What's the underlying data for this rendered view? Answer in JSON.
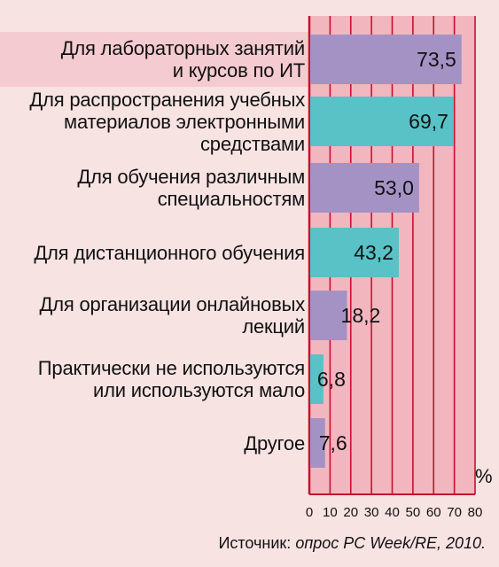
{
  "chart_data": {
    "type": "bar",
    "orientation": "horizontal",
    "categories": [
      "Для лабораторных занятий\nи курсов по ИТ",
      "Для распространения учебных\nматериалов электронными\nсредствами",
      "Для обучения различным\nспециальностям",
      "Для дистанционного обучения",
      "Для организации онлайновых\nлекций",
      "Практически не используются\nили используются мало",
      "Другое"
    ],
    "values": [
      73.5,
      69.7,
      53.0,
      43.2,
      18.2,
      6.8,
      7.6
    ],
    "value_labels": [
      "73,5",
      "69,7",
      "53,0",
      "43,2",
      "18,2",
      "6,8",
      "7,6"
    ],
    "bar_colors": [
      "#a592c4",
      "#58c2c6",
      "#a592c4",
      "#58c2c6",
      "#a592c4",
      "#58c2c6",
      "#a592c4"
    ],
    "xlim": [
      0,
      80
    ],
    "x_ticks": [
      "0",
      "10",
      "20",
      "30",
      "40",
      "50",
      "60",
      "70",
      "80"
    ],
    "unit_label": "%",
    "grid": true,
    "plot_background": "#f2b6bf",
    "grid_color": "#c8102e"
  },
  "source": {
    "prefix": "Источник: ",
    "text": "опрос PC Week/RE, 2010."
  }
}
